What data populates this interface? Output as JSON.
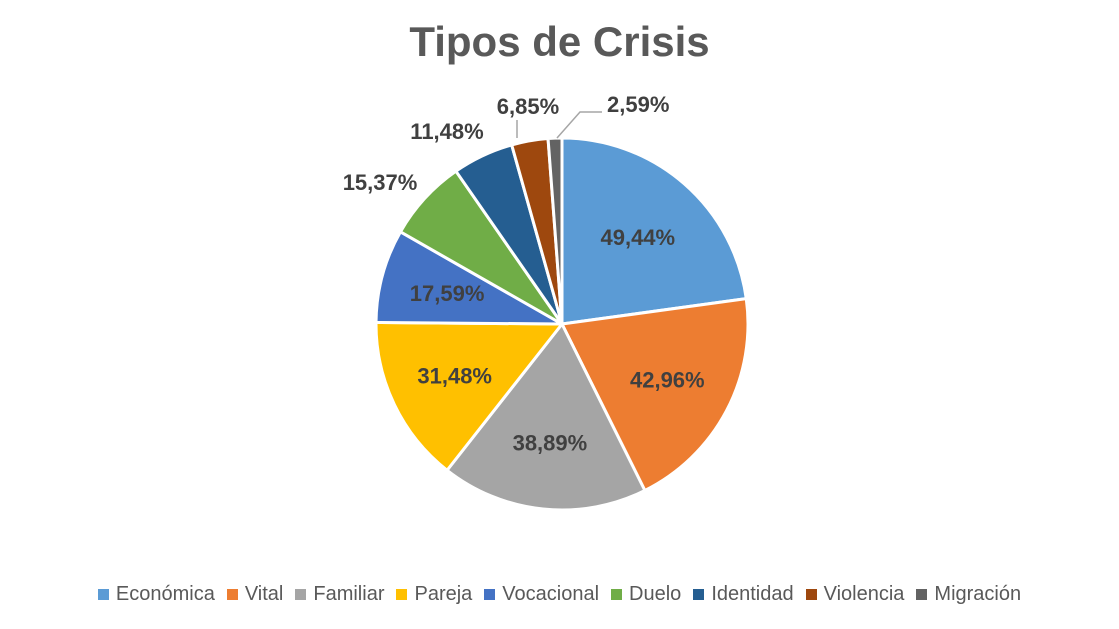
{
  "chart_data": {
    "type": "pie",
    "title": "Tipos de Crisis",
    "legend_position": "bottom",
    "categories": [
      "Económica",
      "Vital",
      "Familiar",
      "Pareja",
      "Vocacional",
      "Duelo",
      "Identidad",
      "Violencia",
      "Migración"
    ],
    "values": [
      49.44,
      42.96,
      38.89,
      31.48,
      17.59,
      15.37,
      11.48,
      6.85,
      2.59
    ],
    "data_labels": [
      "49,44%",
      "42,96%",
      "38,89%",
      "31,48%",
      "17,59%",
      "15,37%",
      "11,48%",
      "6,85%",
      "2,59%"
    ],
    "colors": [
      "#5B9BD5",
      "#ED7D31",
      "#A5A5A5",
      "#FFC000",
      "#4472C4",
      "#70AD47",
      "#255E91",
      "#9E480E",
      "#636363"
    ]
  }
}
